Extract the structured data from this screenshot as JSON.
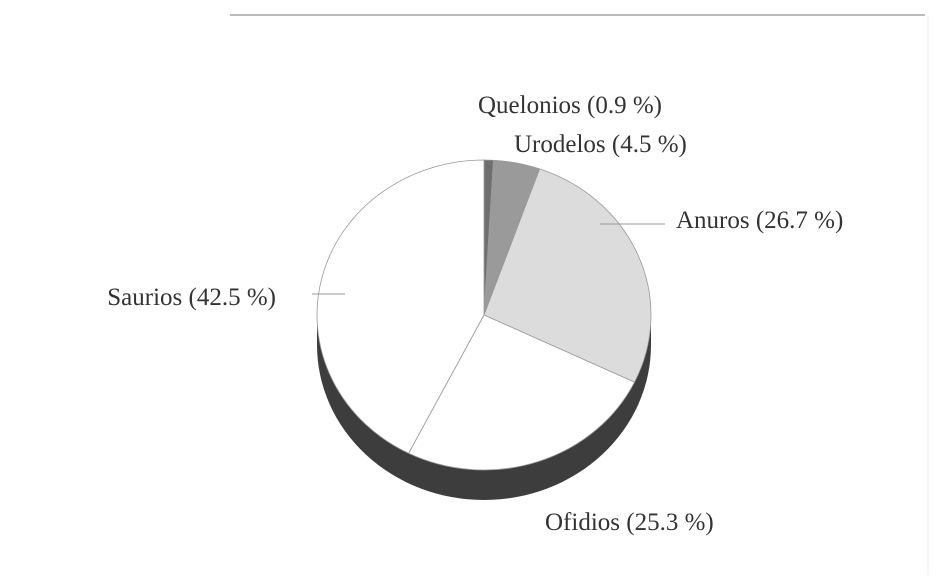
{
  "chart_data": {
    "type": "pie",
    "values": [
      0.9,
      4.5,
      26.7,
      25.3,
      42.5
    ],
    "value_labels": [
      "Quelonios (0.9 %)",
      "Urodelos (4.5 %)",
      "Anuros (26.7 %)",
      "Ofidios (25.3 %)",
      "Saurios (42.5 %)"
    ],
    "colors": [
      "#6f6f6f",
      "#9a9a9a",
      "#dcdcdc",
      "#ffffff",
      "#ffffff"
    ]
  }
}
